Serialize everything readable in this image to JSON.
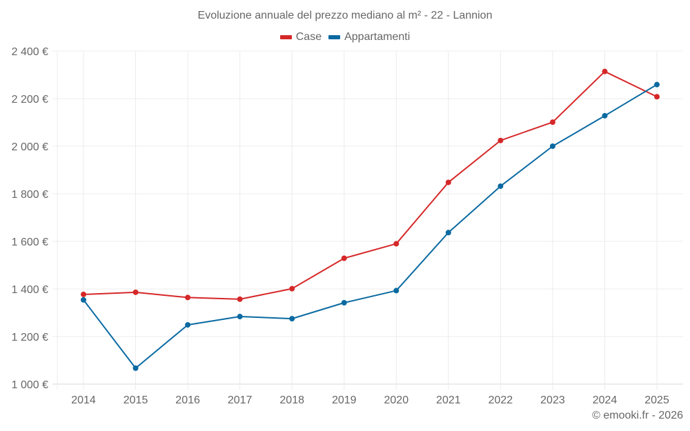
{
  "chart_data": {
    "type": "line",
    "title": "Evoluzione annuale del prezzo mediano al m² - 22 - Lannion",
    "xlabel": "",
    "ylabel": "",
    "categories": [
      "2014",
      "2015",
      "2016",
      "2017",
      "2018",
      "2019",
      "2020",
      "2021",
      "2022",
      "2023",
      "2024",
      "2025"
    ],
    "series": [
      {
        "name": "Case",
        "color": "#d62728",
        "values": [
          1377,
          1386,
          1364,
          1357,
          1401,
          1529,
          1590,
          1848,
          2024,
          2101,
          2314,
          2208
        ]
      },
      {
        "name": "Appartamenti",
        "color": "#0a6aa1",
        "values": [
          1354,
          1067,
          1249,
          1284,
          1275,
          1342,
          1393,
          1637,
          1832,
          2000,
          2128,
          2259
        ]
      }
    ],
    "ylim": [
      1000,
      2400
    ],
    "yticks": [
      1000,
      1200,
      1400,
      1600,
      1800,
      2000,
      2200,
      2400
    ],
    "ytick_labels": [
      "1 000 €",
      "1 200 €",
      "1 400 €",
      "1 600 €",
      "1 800 €",
      "2 000 €",
      "2 200 €",
      "2 400 €"
    ],
    "grid": true,
    "legend_position": "top-center"
  },
  "credit": "© emooki.fr - 2026"
}
